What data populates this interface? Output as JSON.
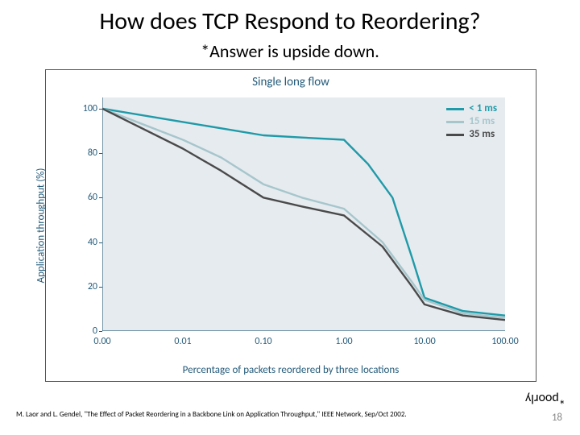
{
  "title": {
    "text": "How does TCP Respond to Reordering?",
    "fontsize": 30,
    "weight": 400
  },
  "subtitle": {
    "text": "*Answer is upside down.",
    "fontsize": 22,
    "weight": 400
  },
  "chart": {
    "type": "line",
    "title": {
      "text": "Single long flow",
      "fontsize": 15,
      "color": "#245b7a"
    },
    "xlabel": {
      "text": "Percentage of packets reordered by three locations",
      "fontsize": 13,
      "color": "#245b7a"
    },
    "ylabel": {
      "text": "Application throughput (%)",
      "fontsize": 13,
      "color": "#245b7a"
    },
    "background_color": "#e6ebef",
    "axis_color": "#245b7a",
    "ylim": [
      0,
      105
    ],
    "yticks": [
      0,
      20,
      40,
      60,
      80,
      100
    ],
    "xscale": "log",
    "xlim": [
      0.001,
      100
    ],
    "xticks": [
      0.0,
      0.01,
      0.1,
      1.0,
      10.0,
      100.0
    ],
    "xtick_labels": [
      "0.00",
      "0.01",
      "0.10",
      "1.00",
      "10.00",
      "100.00"
    ],
    "line_width": 2.4,
    "series": [
      {
        "name": "< 1 ms",
        "color": "#1f9aa8",
        "legend_label": "< 1 ms",
        "points": [
          [
            0.001,
            100
          ],
          [
            0.01,
            94
          ],
          [
            0.1,
            88
          ],
          [
            0.3,
            87
          ],
          [
            1.0,
            86
          ],
          [
            2.0,
            75
          ],
          [
            4.0,
            60
          ],
          [
            7.0,
            33
          ],
          [
            10.0,
            15
          ],
          [
            30.0,
            9
          ],
          [
            100.0,
            7
          ]
        ]
      },
      {
        "name": "15 ms",
        "color": "#a6c6cc",
        "legend_label": "15 ms",
        "points": [
          [
            0.001,
            100
          ],
          [
            0.01,
            86
          ],
          [
            0.03,
            78
          ],
          [
            0.1,
            66
          ],
          [
            0.3,
            60
          ],
          [
            1.0,
            55
          ],
          [
            3.0,
            40
          ],
          [
            7.0,
            22
          ],
          [
            10.0,
            14
          ],
          [
            30.0,
            8
          ],
          [
            100.0,
            6
          ]
        ]
      },
      {
        "name": "35 ms",
        "color": "#4a4a4a",
        "legend_label": "35 ms",
        "points": [
          [
            0.001,
            100
          ],
          [
            0.01,
            82
          ],
          [
            0.03,
            72
          ],
          [
            0.1,
            60
          ],
          [
            0.3,
            56
          ],
          [
            1.0,
            52
          ],
          [
            3.0,
            38
          ],
          [
            7.0,
            20
          ],
          [
            10.0,
            12
          ],
          [
            30.0,
            7
          ],
          [
            100.0,
            5
          ]
        ]
      }
    ]
  },
  "citation": "M. Laor and L. Gendel, \"The Effect of Packet Reordering in a Backbone Link on Application Throughput,\" IEEE Network, Sep/Oct 2002.",
  "upside_answer": "*poorly",
  "page_number": "18",
  "colors": {
    "slide_bg": "#ffffff",
    "text": "#000000",
    "pagenum": "#888888"
  }
}
